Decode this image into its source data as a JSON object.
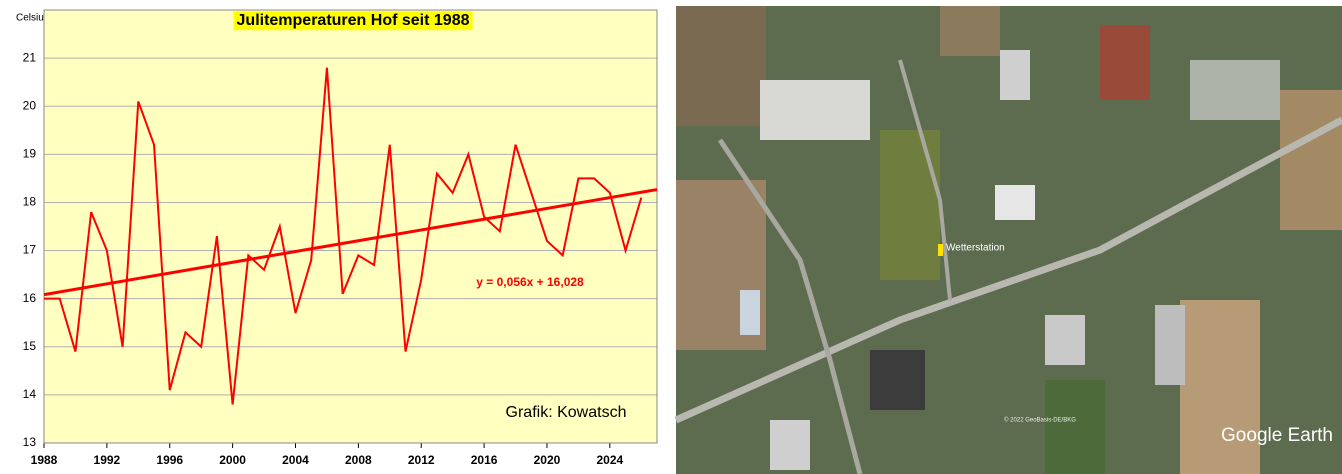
{
  "chart_data": {
    "type": "line",
    "title": "Julitemperaturen Hof seit 1988",
    "ylabel": "Celsius",
    "annotation": "Grafik: Kowatsch",
    "x": [
      1988,
      1989,
      1990,
      1991,
      1992,
      1993,
      1994,
      1995,
      1996,
      1997,
      1998,
      1999,
      2000,
      2001,
      2002,
      2003,
      2004,
      2005,
      2006,
      2007,
      2008,
      2009,
      2010,
      2011,
      2012,
      2013,
      2014,
      2015,
      2016,
      2017,
      2018,
      2019,
      2020,
      2021,
      2022,
      2023,
      2024,
      2025,
      2026
    ],
    "values": [
      16.0,
      16.0,
      14.9,
      17.8,
      17.0,
      15.0,
      20.1,
      19.2,
      14.1,
      15.3,
      15.0,
      17.3,
      13.8,
      16.9,
      16.6,
      17.5,
      15.7,
      16.8,
      20.8,
      16.1,
      16.9,
      16.7,
      19.2,
      14.9,
      16.4,
      18.6,
      18.2,
      19.0,
      17.7,
      17.4,
      19.2,
      18.2,
      17.2,
      16.9,
      18.5,
      18.5,
      18.2,
      17.0,
      18.1
    ],
    "color": "#ff0000",
    "trend": {
      "slope": 0.056,
      "intercept": 16.028,
      "label": "y = 0,056x + 16,028",
      "color": "#ff0000"
    },
    "xlim": [
      1988,
      2027
    ],
    "xticks": [
      1988,
      1992,
      1996,
      2000,
      2004,
      2008,
      2012,
      2016,
      2020,
      2024
    ],
    "ylim": [
      13,
      22
    ],
    "yticks": [
      13,
      14,
      15,
      16,
      17,
      18,
      19,
      20,
      21
    ],
    "grid": true,
    "background": "#ffffc0"
  },
  "map": {
    "marker_label": "Wetterstation",
    "watermark": "Google Earth",
    "copyright": "© 2022 GeoBasis-DE/BKG"
  }
}
